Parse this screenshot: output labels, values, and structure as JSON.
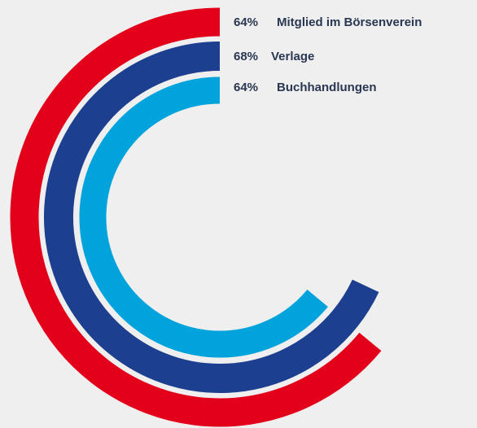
{
  "chart_data": {
    "type": "radial_bar",
    "ylim": [
      0,
      100
    ],
    "series": [
      {
        "name": "Mitglied im Börsenverein",
        "color": "#e2001a",
        "values": [
          64
        ],
        "value_labels": [
          "64%"
        ]
      },
      {
        "name": "Verlage",
        "color": "#1c3f8f",
        "values": [
          68
        ],
        "value_labels": [
          "68%"
        ]
      },
      {
        "name": "Buchhandlungen",
        "color": "#00a3dc",
        "values": [
          64
        ],
        "value_labels": [
          "64%"
        ]
      }
    ]
  }
}
